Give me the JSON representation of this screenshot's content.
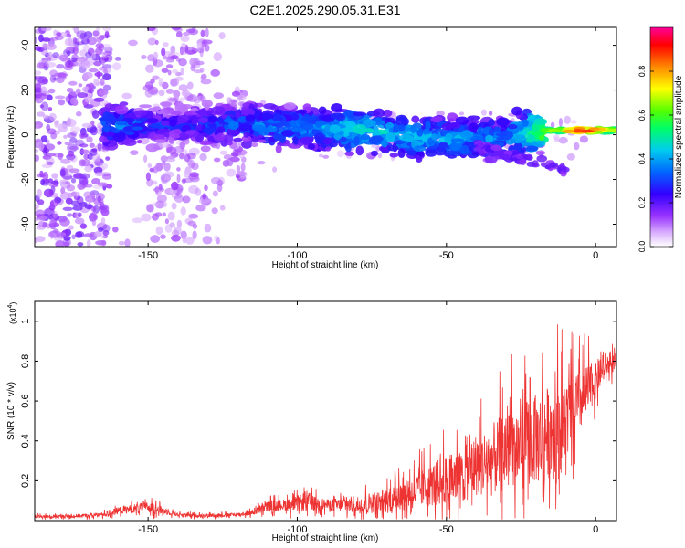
{
  "chart_data": [
    {
      "type": "heatmap",
      "title": "C2E1.2025.290.05.31.E31",
      "xlabel": "Height of straight line (km)",
      "ylabel": "Frequency (Hz)",
      "xlim": [
        -188,
        7
      ],
      "ylim": [
        -50,
        48
      ],
      "xticks": [
        -150,
        -100,
        -50,
        0
      ],
      "yticks": [
        -40,
        -20,
        0,
        20,
        40
      ],
      "colorbar": {
        "label": "Normalized spectral amplitude",
        "range": [
          0,
          1
        ],
        "ticks": [
          0.0,
          0.2,
          0.4,
          0.6,
          0.8
        ],
        "colors": [
          "#ffffff",
          "#cc88ff",
          "#8800ff",
          "#0000ff",
          "#00ccff",
          "#00ff66",
          "#66ff00",
          "#ffff00",
          "#ff8800",
          "#ff0000",
          "#ff00aa"
        ]
      },
      "main_band": [
        {
          "x": -160,
          "y": 4,
          "amp": 0.35
        },
        {
          "x": -150,
          "y": 4,
          "amp": 0.28
        },
        {
          "x": -140,
          "y": 4,
          "amp": 0.26
        },
        {
          "x": -130,
          "y": 4,
          "amp": 0.3
        },
        {
          "x": -120,
          "y": 5,
          "amp": 0.33
        },
        {
          "x": -110,
          "y": 4,
          "amp": 0.36
        },
        {
          "x": -100,
          "y": 3,
          "amp": 0.38
        },
        {
          "x": -90,
          "y": 3,
          "amp": 0.4
        },
        {
          "x": -80,
          "y": 2,
          "amp": 0.45
        },
        {
          "x": -70,
          "y": 1,
          "amp": 0.42
        },
        {
          "x": -60,
          "y": -1,
          "amp": 0.42
        },
        {
          "x": -50,
          "y": -2,
          "amp": 0.4
        },
        {
          "x": -40,
          "y": -2,
          "amp": 0.38
        },
        {
          "x": -30,
          "y": -1,
          "amp": 0.36
        },
        {
          "x": -20,
          "y": 2,
          "amp": 0.55
        },
        {
          "x": -10,
          "y": 2,
          "amp": 0.8
        },
        {
          "x": -5,
          "y": 2,
          "amp": 0.95
        },
        {
          "x": 0,
          "y": 2,
          "amp": 0.9
        },
        {
          "x": 5,
          "y": 2,
          "amp": 0.7
        }
      ]
    },
    {
      "type": "line",
      "xlabel": "Height of straight line (km)",
      "ylabel": "SNR (10 * v/v)",
      "scale_label": "(x10",
      "scale_exp": "4",
      "scale_close": ")",
      "xlim": [
        -188,
        7
      ],
      "ylim": [
        0,
        1.1
      ],
      "xticks": [
        -150,
        -100,
        -50,
        0
      ],
      "yticks": [
        0.2,
        0.4,
        0.6,
        0.8,
        1
      ],
      "ytick_labels": [
        "0.2",
        "0.4",
        "0.6",
        "0.8",
        "1"
      ],
      "color": "#ee3333",
      "series": [
        {
          "name": "SNR",
          "x": [
            -188,
            -180,
            -170,
            -165,
            -160,
            -155,
            -150,
            -148,
            -145,
            -140,
            -135,
            -130,
            -120,
            -115,
            -112,
            -110,
            -105,
            -100,
            -97,
            -95,
            -90,
            -85,
            -80,
            -75,
            -70,
            -65,
            -60,
            -55,
            -50,
            -45,
            -40,
            -35,
            -30,
            -28,
            -25,
            -22,
            -20,
            -18,
            -15,
            -13,
            -10,
            -8,
            -5,
            -3,
            0,
            2,
            4,
            7
          ],
          "base": [
            0.02,
            0.02,
            0.025,
            0.03,
            0.05,
            0.06,
            0.07,
            0.06,
            0.05,
            0.03,
            0.025,
            0.025,
            0.03,
            0.04,
            0.06,
            0.07,
            0.08,
            0.08,
            0.1,
            0.09,
            0.08,
            0.08,
            0.08,
            0.09,
            0.1,
            0.12,
            0.15,
            0.18,
            0.2,
            0.22,
            0.28,
            0.3,
            0.35,
            0.35,
            0.38,
            0.4,
            0.4,
            0.42,
            0.45,
            0.45,
            0.5,
            0.55,
            0.6,
            0.65,
            0.7,
            0.75,
            0.78,
            0.8
          ],
          "spread": [
            0.02,
            0.02,
            0.02,
            0.025,
            0.04,
            0.05,
            0.05,
            0.06,
            0.04,
            0.02,
            0.02,
            0.02,
            0.02,
            0.03,
            0.05,
            0.06,
            0.06,
            0.08,
            0.12,
            0.08,
            0.06,
            0.08,
            0.1,
            0.12,
            0.14,
            0.16,
            0.2,
            0.24,
            0.28,
            0.3,
            0.35,
            0.4,
            0.45,
            0.5,
            0.45,
            0.5,
            0.48,
            0.55,
            0.5,
            0.6,
            0.45,
            0.4,
            0.35,
            0.3,
            0.2,
            0.15,
            0.12,
            0.1
          ]
        }
      ]
    }
  ]
}
